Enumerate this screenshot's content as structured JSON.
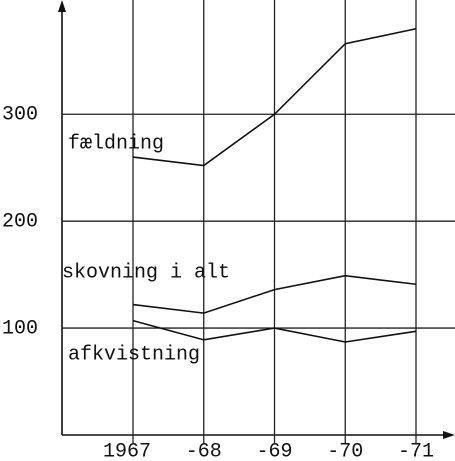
{
  "chart_data": {
    "type": "line",
    "categories": [
      "1967",
      "-68",
      "-69",
      "-70",
      "-71"
    ],
    "series": [
      {
        "name": "fældning",
        "color": "#111111",
        "values": [
          260,
          252,
          300,
          366,
          380
        ]
      },
      {
        "name": "skovning i alt",
        "color": "#111111",
        "values": [
          122,
          114,
          136,
          149,
          141
        ]
      },
      {
        "name": "afkvistning",
        "color": "#111111",
        "values": [
          107,
          89,
          100,
          87,
          97
        ]
      }
    ],
    "ylim": [
      0,
      405
    ],
    "yticks": [
      100,
      200,
      300
    ],
    "grid": true
  }
}
